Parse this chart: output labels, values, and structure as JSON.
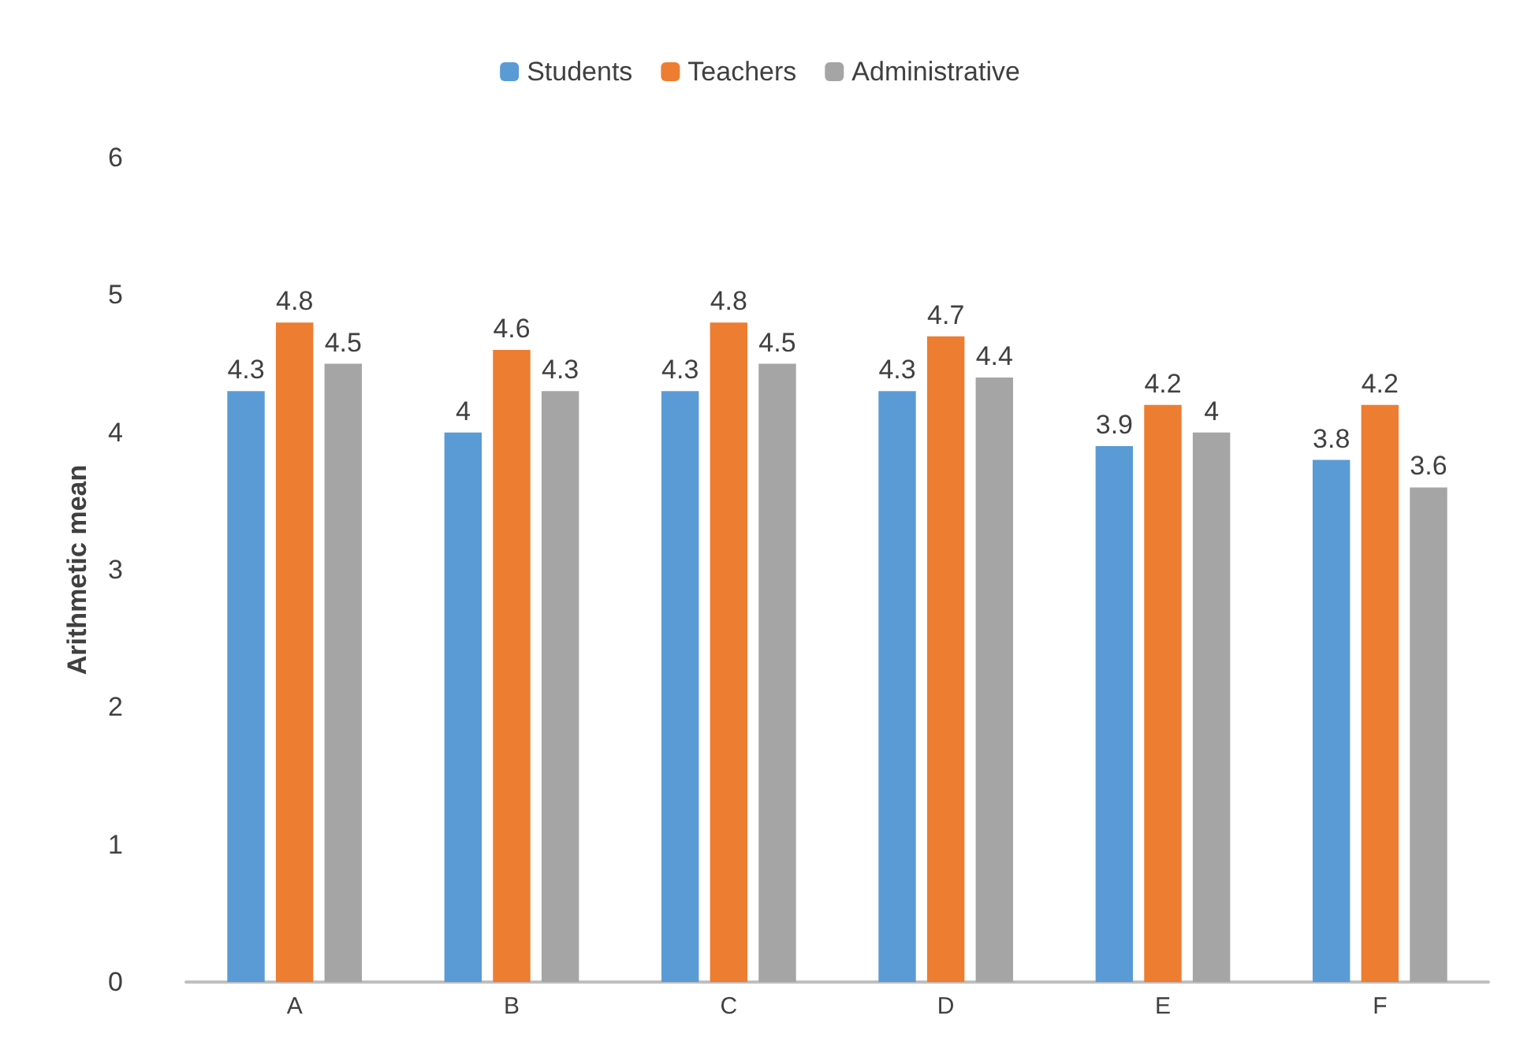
{
  "chart_data": {
    "type": "bar",
    "ylabel": "Arithmetic mean",
    "categories": [
      "A",
      "B",
      "C",
      "D",
      "E",
      "F"
    ],
    "series": [
      {
        "name": "Students",
        "color": "#5b9bd5",
        "values": [
          4.3,
          4,
          4.3,
          4.3,
          3.9,
          3.8
        ]
      },
      {
        "name": "Teachers",
        "color": "#ed7d31",
        "values": [
          4.8,
          4.6,
          4.8,
          4.7,
          4.2,
          4.2
        ]
      },
      {
        "name": "Administrative",
        "color": "#a5a5a5",
        "values": [
          4.5,
          4.3,
          4.5,
          4.4,
          4,
          3.6
        ]
      }
    ],
    "ylim": [
      0,
      6
    ],
    "yticks": [
      0,
      1,
      2,
      3,
      4,
      5,
      6
    ],
    "grid": false,
    "legend": "top",
    "data_labels": true
  }
}
